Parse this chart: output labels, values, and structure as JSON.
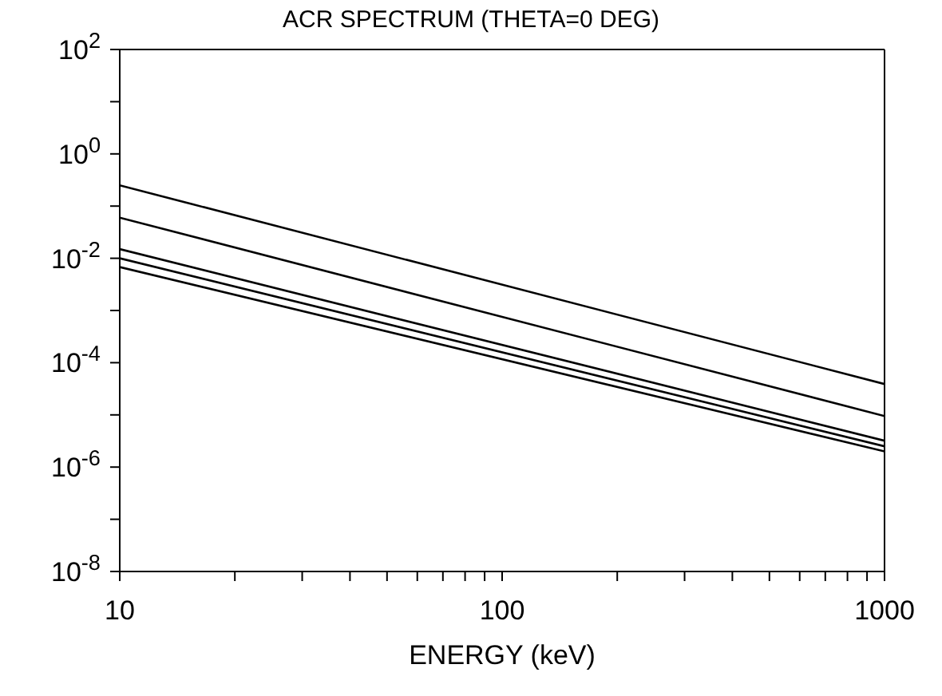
{
  "chart_data": {
    "type": "line",
    "title": "ACR SPECTRUM (THETA=0 DEG)",
    "xlabel": "ENERGY (keV)",
    "log": "xy",
    "x": [
      10,
      1000
    ],
    "series": [
      {
        "color": "#000000",
        "values": [
          0.25,
          3.9e-05
        ]
      },
      {
        "color": "#000000",
        "values": [
          0.06,
          9.5e-06
        ]
      },
      {
        "color": "#000000",
        "values": [
          0.015,
          3.2e-06
        ]
      },
      {
        "color": "#000000",
        "values": [
          0.01,
          2.5e-06
        ]
      },
      {
        "color": "#000000",
        "values": [
          0.0068,
          2e-06
        ]
      }
    ],
    "xlim": [
      10,
      1000
    ],
    "xticks": [
      10,
      {
        "value": 20,
        "label": null
      },
      {
        "value": 30,
        "label": null
      },
      {
        "value": 40,
        "label": null
      },
      {
        "value": 50,
        "label": null
      },
      {
        "value": 60,
        "label": null
      },
      {
        "value": 70,
        "label": null
      },
      {
        "value": 80,
        "label": null
      },
      {
        "value": 90,
        "label": null
      },
      100,
      {
        "value": 200,
        "label": null
      },
      {
        "value": 300,
        "label": null
      },
      {
        "value": 400,
        "label": null
      },
      {
        "value": 500,
        "label": null
      },
      {
        "value": 600,
        "label": null
      },
      {
        "value": 700,
        "label": null
      },
      {
        "value": 800,
        "label": null
      },
      {
        "value": 900,
        "label": null
      },
      1000
    ],
    "ylim": [
      1e-08,
      100
    ],
    "yticks": [
      {
        "value": 1e-08,
        "label": "10$^{-8}$"
      },
      {
        "value": 1e-07,
        "label": null
      },
      {
        "value": 1e-06,
        "label": "10$^{-6}$"
      },
      {
        "value": 1e-05,
        "label": null
      },
      {
        "value": 0.0001,
        "label": "10$^{-4}$"
      },
      {
        "value": 0.001,
        "label": null
      },
      {
        "value": 0.01,
        "label": "10$^{-2}$"
      },
      {
        "value": 0.1,
        "label": null
      },
      {
        "value": 1,
        "label": "10$^{0}$"
      },
      {
        "value": 10,
        "label": null
      },
      {
        "value": 100,
        "label": "10$^{2}$"
      }
    ],
    "grid": false,
    "marker": "none",
    "line_style": "solid"
  }
}
